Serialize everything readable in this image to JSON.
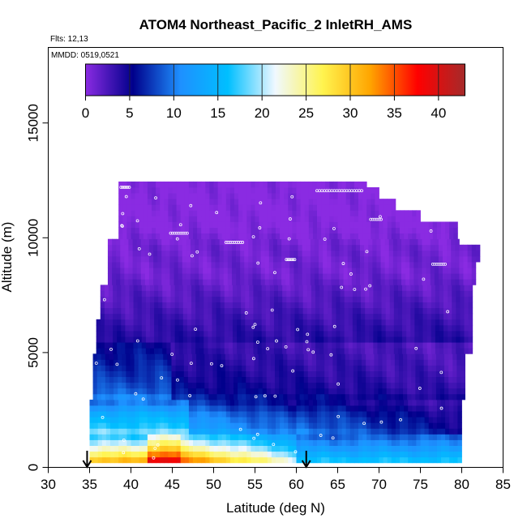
{
  "chart_data": {
    "type": "heatmap",
    "title": "ATOM4 Northeast_Pacific_2 InletRH_AMS",
    "flights_label": "Flts: 12,13",
    "dates_label": "MMDD: 0519,0521",
    "xlabel": "Latitude (deg N)",
    "ylabel": "Altitude (m)",
    "xlim": [
      30,
      85
    ],
    "ylim": [
      0,
      17500
    ],
    "x_ticks": [
      30,
      35,
      40,
      45,
      50,
      55,
      60,
      65,
      70,
      75,
      80,
      85
    ],
    "y_ticks": [
      0,
      5000,
      10000,
      15000
    ],
    "grid": false,
    "colorbar": {
      "location": "top-inside",
      "range": [
        0,
        43
      ],
      "ticks": [
        0,
        5,
        10,
        15,
        20,
        25,
        30,
        35,
        40
      ],
      "colors": [
        "#8a2be2",
        "#00008b",
        "#1e90ff",
        "#00bfff",
        "#f0f8ff",
        "#fff44f",
        "#ffa500",
        "#ff0000",
        "#a52a2a"
      ]
    },
    "data_latitude_range": [
      35,
      82
    ],
    "data_altitude_range": [
      200,
      12400
    ],
    "inlet_rh_profile": [
      {
        "altitude": 250,
        "rh": 37
      },
      {
        "altitude": 750,
        "rh": 28
      },
      {
        "altitude": 1250,
        "rh": 21
      },
      {
        "altitude": 1750,
        "rh": 16
      },
      {
        "altitude": 2250,
        "rh": 14
      },
      {
        "altitude": 2750,
        "rh": 10
      },
      {
        "altitude": 3250,
        "rh": 7
      },
      {
        "altitude": 3750,
        "rh": 6
      },
      {
        "altitude": 4500,
        "rh": 5
      },
      {
        "altitude": 5500,
        "rh": 4
      },
      {
        "altitude": 6500,
        "rh": 3
      },
      {
        "altitude": 7500,
        "rh": 2
      },
      {
        "altitude": 8500,
        "rh": 1
      },
      {
        "altitude": 9500,
        "rh": 1
      },
      {
        "altitude": 10500,
        "rh": 0
      },
      {
        "altitude": 11500,
        "rh": 0
      },
      {
        "altitude": 12250,
        "rh": 0
      }
    ],
    "markers": [
      {
        "name": "arrow",
        "latitude": 34.7
      },
      {
        "name": "arrow",
        "latitude": 61.2
      }
    ]
  }
}
